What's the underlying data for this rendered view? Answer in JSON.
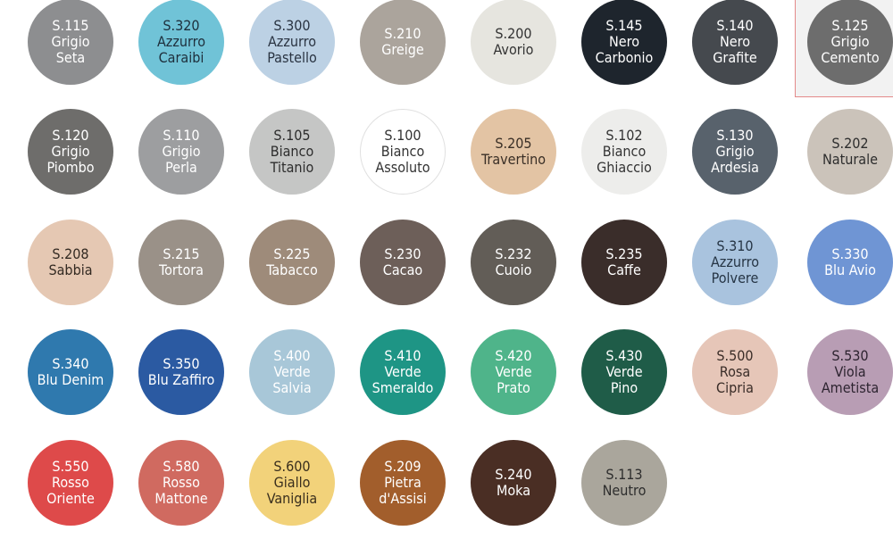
{
  "colors": [
    {
      "code": "S.115",
      "name": [
        "Grigio",
        "Seta"
      ],
      "bg": "#8d8e90",
      "fg": "#ffffff",
      "row": 0,
      "col": 0
    },
    {
      "code": "S.320",
      "name": [
        "Azzurro",
        "Caraibi"
      ],
      "bg": "#70c3d7",
      "fg": "#1e2f3c",
      "row": 0,
      "col": 1
    },
    {
      "code": "S.300",
      "name": [
        "Azzurro",
        "Pastello"
      ],
      "bg": "#bcd1e4",
      "fg": "#2a3442",
      "row": 0,
      "col": 2
    },
    {
      "code": "S.210",
      "name": [
        "Greige"
      ],
      "bg": "#aba49c",
      "fg": "#ffffff",
      "row": 0,
      "col": 3
    },
    {
      "code": "S.200",
      "name": [
        "Avorio"
      ],
      "bg": "#e6e5df",
      "fg": "#333333",
      "row": 0,
      "col": 4
    },
    {
      "code": "S.145",
      "name": [
        "Nero",
        "Carbonio"
      ],
      "bg": "#1e252d",
      "fg": "#ffffff",
      "row": 0,
      "col": 5
    },
    {
      "code": "S.140",
      "name": [
        "Nero",
        "Grafite"
      ],
      "bg": "#45494e",
      "fg": "#ffffff",
      "row": 0,
      "col": 6
    },
    {
      "code": "S.125",
      "name": [
        "Grigio",
        "Cemento"
      ],
      "bg": "#6d6d6d",
      "fg": "#ffffff",
      "row": 0,
      "col": 7,
      "selected": true
    },
    {
      "code": "S.120",
      "name": [
        "Grigio",
        "Piombo"
      ],
      "bg": "#6e6d6b",
      "fg": "#ffffff",
      "row": 1,
      "col": 0
    },
    {
      "code": "S.110",
      "name": [
        "Grigio",
        "Perla"
      ],
      "bg": "#9d9ea0",
      "fg": "#ffffff",
      "row": 1,
      "col": 1
    },
    {
      "code": "S.105",
      "name": [
        "Bianco",
        "Titanio"
      ],
      "bg": "#c5c6c5",
      "fg": "#2d2d2d",
      "row": 1,
      "col": 2
    },
    {
      "code": "S.100",
      "name": [
        "Bianco",
        "Assoluto"
      ],
      "bg": "#ffffff",
      "fg": "#333333",
      "border": "#e0e0e0",
      "row": 1,
      "col": 3
    },
    {
      "code": "S.205",
      "name": [
        "Travertino"
      ],
      "bg": "#e3c4a4",
      "fg": "#3a2f26",
      "row": 1,
      "col": 4
    },
    {
      "code": "S.102",
      "name": [
        "Bianco",
        "Ghiaccio"
      ],
      "bg": "#ededeb",
      "fg": "#333333",
      "row": 1,
      "col": 5
    },
    {
      "code": "S.130",
      "name": [
        "Grigio",
        "Ardesia"
      ],
      "bg": "#58626c",
      "fg": "#ffffff",
      "row": 1,
      "col": 6
    },
    {
      "code": "S.202",
      "name": [
        "Naturale"
      ],
      "bg": "#cbc3ba",
      "fg": "#2d2d2d",
      "row": 1,
      "col": 7
    },
    {
      "code": "S.208",
      "name": [
        "Sabbia"
      ],
      "bg": "#e5c8b3",
      "fg": "#332a22",
      "row": 2,
      "col": 0
    },
    {
      "code": "S.215",
      "name": [
        "Tortora"
      ],
      "bg": "#9a9188",
      "fg": "#ffffff",
      "row": 2,
      "col": 1
    },
    {
      "code": "S.225",
      "name": [
        "Tabacco"
      ],
      "bg": "#9e8b7a",
      "fg": "#ffffff",
      "row": 2,
      "col": 2
    },
    {
      "code": "S.230",
      "name": [
        "Cacao"
      ],
      "bg": "#6d5f59",
      "fg": "#ffffff",
      "row": 2,
      "col": 3
    },
    {
      "code": "S.232",
      "name": [
        "Cuoio"
      ],
      "bg": "#625d57",
      "fg": "#ffffff",
      "row": 2,
      "col": 4
    },
    {
      "code": "S.235",
      "name": [
        "Caffe"
      ],
      "bg": "#3a2d2a",
      "fg": "#ffffff",
      "row": 2,
      "col": 5
    },
    {
      "code": "S.310",
      "name": [
        "Azzurro",
        "Polvere"
      ],
      "bg": "#a9c3de",
      "fg": "#263545",
      "row": 2,
      "col": 6
    },
    {
      "code": "S.330",
      "name": [
        "Blu Avio"
      ],
      "bg": "#6f95d4",
      "fg": "#ffffff",
      "row": 2,
      "col": 7
    },
    {
      "code": "S.340",
      "name": [
        "Blu Denim"
      ],
      "bg": "#2f79ae",
      "fg": "#ffffff",
      "row": 3,
      "col": 0
    },
    {
      "code": "S.350",
      "name": [
        "Blu Zaffiro"
      ],
      "bg": "#2b5aa2",
      "fg": "#ffffff",
      "row": 3,
      "col": 1
    },
    {
      "code": "S.400",
      "name": [
        "Verde",
        "Salvia"
      ],
      "bg": "#a8c7d8",
      "fg": "#ffffff",
      "row": 3,
      "col": 2
    },
    {
      "code": "S.410",
      "name": [
        "Verde",
        "Smeraldo"
      ],
      "bg": "#1e9585",
      "fg": "#ffffff",
      "row": 3,
      "col": 3
    },
    {
      "code": "S.420",
      "name": [
        "Verde",
        "Prato"
      ],
      "bg": "#4fb48a",
      "fg": "#ffffff",
      "row": 3,
      "col": 4
    },
    {
      "code": "S.430",
      "name": [
        "Verde",
        "Pino"
      ],
      "bg": "#1f5c48",
      "fg": "#ffffff",
      "row": 3,
      "col": 5
    },
    {
      "code": "S.500",
      "name": [
        "Rosa",
        "Cipria"
      ],
      "bg": "#e6c6b8",
      "fg": "#3a2d28",
      "row": 3,
      "col": 6
    },
    {
      "code": "S.530",
      "name": [
        "Viola",
        "Ametista"
      ],
      "bg": "#b89db4",
      "fg": "#2d2430",
      "row": 3,
      "col": 7
    },
    {
      "code": "S.550",
      "name": [
        "Rosso",
        "Oriente"
      ],
      "bg": "#de4a4a",
      "fg": "#ffffff",
      "row": 4,
      "col": 0
    },
    {
      "code": "S.580",
      "name": [
        "Rosso",
        "Mattone"
      ],
      "bg": "#d06a60",
      "fg": "#ffffff",
      "row": 4,
      "col": 1
    },
    {
      "code": "S.600",
      "name": [
        "Giallo",
        "Vaniglia"
      ],
      "bg": "#f2d27a",
      "fg": "#3a2f1e",
      "row": 4,
      "col": 2
    },
    {
      "code": "S.209",
      "name": [
        "Pietra",
        "d'Assisi"
      ],
      "bg": "#a25e2c",
      "fg": "#ffffff",
      "row": 4,
      "col": 3
    },
    {
      "code": "S.240",
      "name": [
        "Moka"
      ],
      "bg": "#4a2e24",
      "fg": "#ffffff",
      "row": 4,
      "col": 4
    },
    {
      "code": "S.113",
      "name": [
        "Neutro"
      ],
      "bg": "#aaa69c",
      "fg": "#2d2d2d",
      "row": 4,
      "col": 5
    }
  ]
}
